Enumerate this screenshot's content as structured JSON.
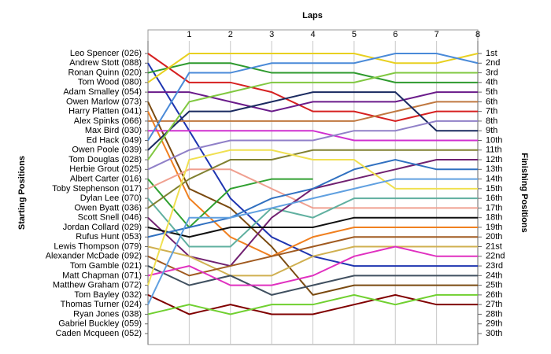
{
  "chart_data": {
    "type": "line",
    "title": "Laps",
    "ylabel": "Starting Positions",
    "y2label": "Finishing Positions",
    "x": [
      0,
      1,
      2,
      3,
      4,
      5,
      6,
      7,
      8
    ],
    "xlim": [
      0,
      8
    ],
    "xticks": [
      1,
      2,
      3,
      4,
      5,
      6,
      7,
      8
    ],
    "ylim": [
      30,
      1
    ],
    "yticks": [
      {
        "value": 1,
        "label": "1st"
      },
      {
        "value": 2,
        "label": "2nd"
      },
      {
        "value": 3,
        "label": "3rd"
      },
      {
        "value": 4,
        "label": "4th"
      },
      {
        "value": 5,
        "label": "5th"
      },
      {
        "value": 6,
        "label": "6th"
      },
      {
        "value": 7,
        "label": "7th"
      },
      {
        "value": 8,
        "label": "8th"
      },
      {
        "value": 9,
        "label": "9th"
      },
      {
        "value": 10,
        "label": "10th"
      },
      {
        "value": 11,
        "label": "11th"
      },
      {
        "value": 12,
        "label": "12th"
      },
      {
        "value": 13,
        "label": "13th"
      },
      {
        "value": 14,
        "label": "14th"
      },
      {
        "value": 15,
        "label": "15th"
      },
      {
        "value": 16,
        "label": "16th"
      },
      {
        "value": 17,
        "label": "17th"
      },
      {
        "value": 18,
        "label": "18th"
      },
      {
        "value": 19,
        "label": "19th"
      },
      {
        "value": 20,
        "label": "20th"
      },
      {
        "value": 21,
        "label": "21st"
      },
      {
        "value": 22,
        "label": "22nd"
      },
      {
        "value": 23,
        "label": "23rd"
      },
      {
        "value": 24,
        "label": "24th"
      },
      {
        "value": 25,
        "label": "25th"
      },
      {
        "value": 26,
        "label": "26th"
      },
      {
        "value": 27,
        "label": "27th"
      },
      {
        "value": 28,
        "label": "28th"
      },
      {
        "value": 29,
        "label": "29th"
      },
      {
        "value": 30,
        "label": "30th"
      }
    ],
    "grid": true,
    "series": [
      {
        "name": "Leo Spencer (026)",
        "color": "#d62020",
        "values": [
          1,
          4,
          4,
          5,
          7,
          7,
          8,
          7,
          7
        ]
      },
      {
        "name": "Andrew Stott (088)",
        "color": "#1f35b0",
        "values": [
          2,
          9,
          16,
          20,
          22,
          23,
          23,
          23,
          23
        ]
      },
      {
        "name": "Ronan Quinn (020)",
        "color": "#2e9a2e",
        "values": [
          3,
          2,
          2,
          3,
          3,
          3,
          4,
          4,
          4
        ]
      },
      {
        "name": "Tom Wood (080)",
        "color": "#e8d020",
        "values": [
          4,
          1,
          1,
          1,
          1,
          1,
          2,
          2,
          1
        ]
      },
      {
        "name": "Adam Smalley (054)",
        "color": "#6a1b8a",
        "values": [
          5,
          5,
          6,
          7,
          6,
          6,
          6,
          5,
          5
        ]
      },
      {
        "name": "Owen Marlow (073)",
        "color": "#7a4a10",
        "values": [
          6,
          15,
          17,
          21,
          26,
          25,
          25,
          25,
          25
        ]
      },
      {
        "name": "Harry Platten (041)",
        "color": "#f08020",
        "values": [
          7,
          16,
          20,
          22,
          20,
          19,
          19,
          19,
          19
        ]
      },
      {
        "name": "Alex Spinks (066)",
        "color": "#c07840",
        "values": [
          8,
          8,
          8,
          8,
          8,
          8,
          7,
          6,
          6
        ]
      },
      {
        "name": "Max Bird (030)",
        "color": "#d030d0",
        "values": [
          9,
          9,
          9,
          9,
          9,
          10,
          10,
          10,
          10
        ]
      },
      {
        "name": "Ed Hack (049)",
        "color": "#4a8ad8",
        "values": [
          10,
          3,
          3,
          2,
          2,
          2,
          1,
          1,
          2
        ]
      },
      {
        "name": "Owen Poole (039)",
        "color": "#1a2a60",
        "values": [
          11,
          7,
          7,
          6,
          5,
          5,
          5,
          9,
          9
        ]
      },
      {
        "name": "Tom Douglas (028)",
        "color": "#80c840",
        "values": [
          12,
          6,
          5,
          4,
          4,
          4,
          3,
          3,
          3
        ]
      },
      {
        "name": "Herbie Grout (025)",
        "color": "#9080c8",
        "values": [
          13,
          11,
          10,
          10,
          10,
          9,
          9,
          8,
          8
        ]
      },
      {
        "name": "Albert Carter (016)",
        "color": "#30a030",
        "values": [
          14,
          19,
          15,
          14,
          14,
          null,
          null,
          null,
          null
        ]
      },
      {
        "name": "Toby Stephenson (017)",
        "color": "#f0a090",
        "values": [
          15,
          13,
          13,
          15,
          17,
          17,
          17,
          17,
          17
        ]
      },
      {
        "name": "Dylan Lee (070)",
        "color": "#60b0a0",
        "values": [
          16,
          21,
          21,
          17,
          18,
          16,
          16,
          16,
          16
        ]
      },
      {
        "name": "Owen Byatt (036)",
        "color": "#808030",
        "values": [
          17,
          14,
          12,
          12,
          11,
          11,
          11,
          11,
          11
        ]
      },
      {
        "name": "Scott Snell (046)",
        "color": "#702070",
        "values": [
          18,
          22,
          23,
          18,
          15,
          14,
          13,
          12,
          12
        ]
      },
      {
        "name": "Jordan Collard (029)",
        "color": "#101010",
        "values": [
          19,
          20,
          19,
          19,
          19,
          18,
          18,
          18,
          18
        ]
      },
      {
        "name": "Rufus Hunt (053)",
        "color": "#3070c0",
        "values": [
          20,
          19,
          18,
          16,
          15,
          13,
          12,
          13,
          13
        ]
      },
      {
        "name": "Lewis Thompson (079)",
        "color": "#d0b050",
        "values": [
          21,
          22,
          24,
          24,
          22,
          21,
          21,
          21,
          21
        ]
      },
      {
        "name": "Alexander McDade (092)",
        "color": "#a05a20",
        "values": [
          22,
          24,
          23,
          22,
          21,
          20,
          20,
          20,
          20
        ]
      },
      {
        "name": "Tom Gamble (021)",
        "color": "#405060",
        "values": [
          23,
          25,
          24,
          26,
          25,
          24,
          24,
          24,
          24
        ]
      },
      {
        "name": "Matt Chapman (071)",
        "color": "#e030c0",
        "values": [
          24,
          23,
          25,
          25,
          24,
          22,
          21,
          22,
          22
        ]
      },
      {
        "name": "Matthew Graham (072)",
        "color": "#f0e050",
        "values": [
          25,
          12,
          11,
          11,
          12,
          12,
          15,
          15,
          15
        ]
      },
      {
        "name": "Tom Bayley (032)",
        "color": "#800000",
        "values": [
          26,
          28,
          27,
          28,
          28,
          27,
          26,
          27,
          27
        ]
      },
      {
        "name": "Thomas Turner (024)",
        "color": "#60a0e0",
        "values": [
          27,
          18,
          18,
          17,
          16,
          15,
          14,
          14,
          14
        ]
      },
      {
        "name": "Ryan Jones (038)",
        "color": "#70d030",
        "values": [
          28,
          27,
          28,
          27,
          27,
          26,
          27,
          26,
          26
        ]
      },
      {
        "name": "Gabriel Buckley (059)",
        "color": "#888888",
        "values": [
          29,
          null,
          null,
          null,
          null,
          null,
          null,
          null,
          null
        ]
      },
      {
        "name": "Caden Mcqueen (052)",
        "color": "#888888",
        "values": [
          30,
          null,
          null,
          null,
          null,
          null,
          null,
          null,
          null
        ]
      }
    ]
  }
}
